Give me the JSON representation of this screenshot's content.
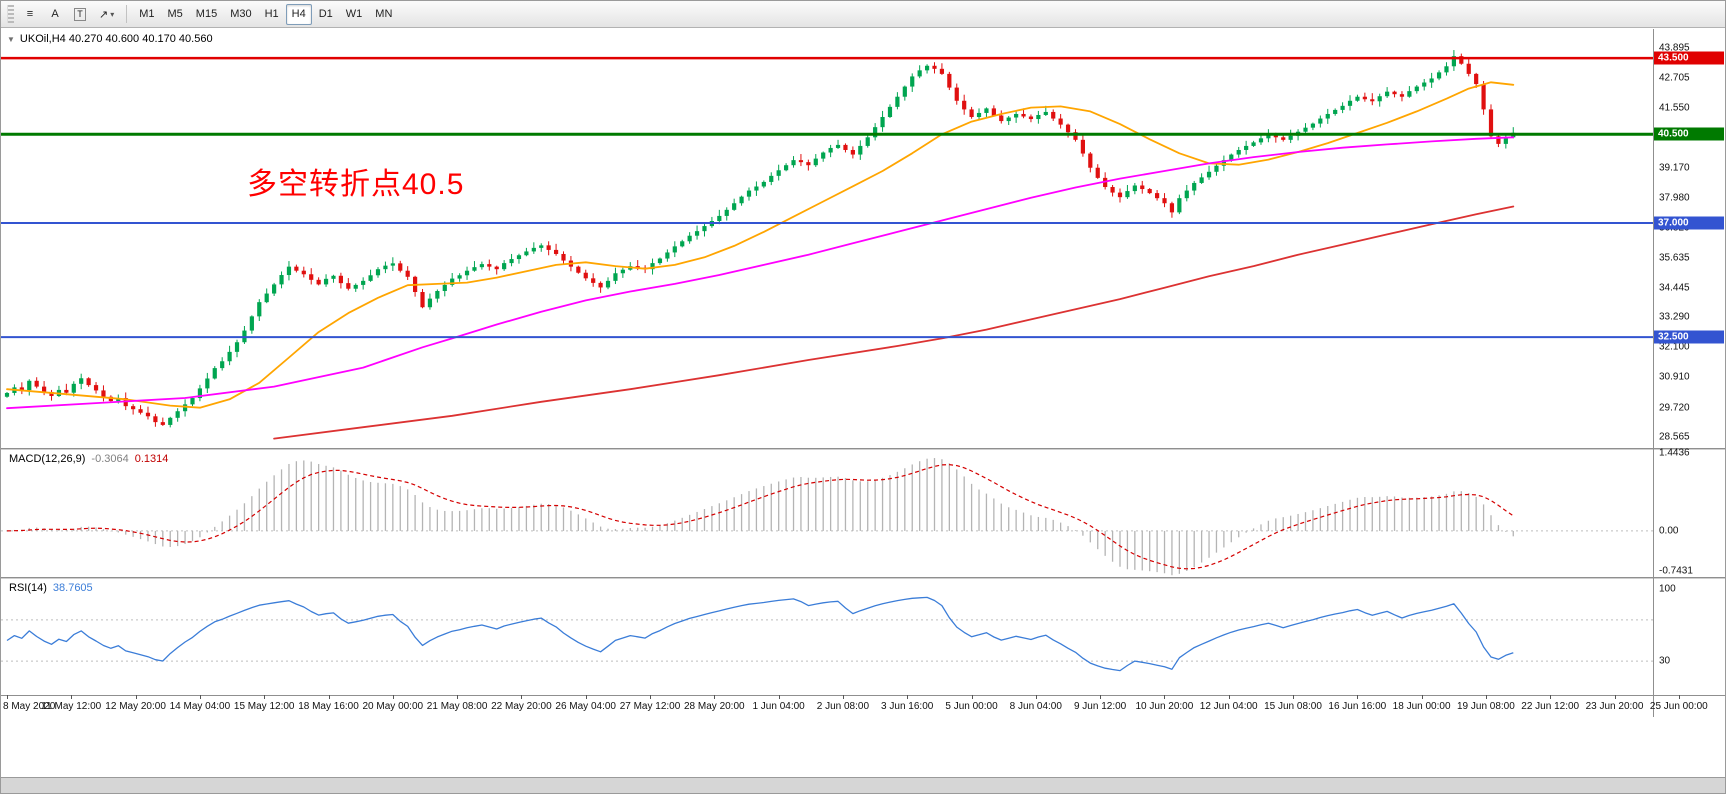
{
  "toolbar": {
    "tools": [
      {
        "name": "line-studies",
        "glyph": "≡"
      },
      {
        "name": "text-label",
        "glyph": "A"
      },
      {
        "name": "text-box",
        "glyph": "T"
      },
      {
        "name": "arrows",
        "glyph": "↗"
      }
    ],
    "dropdown_caret": "▾",
    "timeframes": [
      "M1",
      "M5",
      "M15",
      "M30",
      "H1",
      "H4",
      "D1",
      "W1",
      "MN"
    ],
    "active_timeframe": "H4"
  },
  "symbol_bar": {
    "marker": "▼",
    "text": "UKOil,H4 40.270 40.600 40.170 40.560"
  },
  "annotation": {
    "text": "多空转折点40.5",
    "color": "#ff0000"
  },
  "colors": {
    "bull": "#00A550",
    "bear": "#E01010",
    "ma_fast": "#FFA500",
    "ma_mid": "#FF00FF",
    "ma_slow": "#DC3232",
    "macd_hist": "#B4B4B4",
    "macd_signal": "#D40000",
    "rsi_line": "#3B7DD8",
    "level_dotted": "#BDBDBD"
  },
  "chart_data": {
    "type": "candlestick",
    "symbol": "UKOil",
    "timeframe": "H4",
    "main": {
      "ylim": [
        28.13,
        44.65
      ],
      "yticks": [
        43.895,
        42.705,
        41.55,
        40.39,
        39.17,
        37.98,
        36.82,
        35.635,
        34.445,
        33.29,
        32.1,
        30.91,
        29.72,
        28.565
      ],
      "hlines": [
        {
          "price": 43.5,
          "color": "#E00000",
          "width": 2.5,
          "label": "43.500"
        },
        {
          "price": 40.5,
          "color": "#007A00",
          "width": 3,
          "label": "40.500"
        },
        {
          "price": 37.0,
          "color": "#3354D1",
          "width": 2,
          "label": "37.000"
        },
        {
          "price": 32.5,
          "color": "#3354D1",
          "width": 2,
          "label": "32.500"
        }
      ],
      "closes": [
        30.3,
        30.52,
        30.41,
        30.78,
        30.55,
        30.34,
        30.18,
        30.42,
        30.31,
        30.66,
        30.88,
        30.61,
        30.4,
        30.15,
        29.98,
        30.1,
        29.78,
        29.66,
        29.52,
        29.38,
        29.15,
        29.04,
        29.32,
        29.58,
        29.85,
        30.1,
        30.48,
        30.87,
        31.28,
        31.55,
        31.92,
        32.3,
        32.76,
        33.32,
        33.88,
        34.22,
        34.58,
        34.95,
        35.28,
        35.12,
        34.98,
        34.76,
        34.58,
        34.8,
        34.92,
        34.63,
        34.41,
        34.56,
        34.72,
        34.94,
        35.18,
        35.32,
        35.41,
        35.12,
        34.88,
        34.28,
        33.68,
        34.02,
        34.32,
        34.56,
        34.81,
        34.94,
        35.12,
        35.26,
        35.38,
        35.28,
        35.18,
        35.42,
        35.58,
        35.73,
        35.88,
        36.02,
        36.12,
        35.94,
        35.78,
        35.52,
        35.28,
        35.04,
        34.82,
        34.64,
        34.46,
        34.72,
        35.02,
        35.16,
        35.3,
        35.24,
        35.18,
        35.42,
        35.6,
        35.84,
        36.08,
        36.28,
        36.5,
        36.68,
        36.88,
        37.08,
        37.28,
        37.52,
        37.78,
        38.04,
        38.28,
        38.44,
        38.62,
        38.86,
        39.08,
        39.28,
        39.48,
        39.4,
        39.28,
        39.54,
        39.78,
        39.96,
        40.08,
        39.88,
        39.7,
        40.04,
        40.38,
        40.78,
        41.18,
        41.58,
        41.98,
        42.38,
        42.78,
        43.02,
        43.2,
        43.08,
        42.88,
        42.34,
        41.82,
        41.48,
        41.18,
        41.34,
        41.52,
        41.24,
        41.02,
        41.16,
        41.3,
        41.2,
        41.1,
        41.26,
        41.38,
        41.12,
        40.88,
        40.58,
        40.28,
        39.74,
        39.18,
        38.78,
        38.42,
        38.2,
        38.02,
        38.26,
        38.48,
        38.34,
        38.18,
        37.98,
        37.78,
        37.42,
        37.98,
        38.28,
        38.58,
        38.8,
        39.02,
        39.26,
        39.48,
        39.7,
        39.88,
        40.04,
        40.18,
        40.34,
        40.48,
        40.38,
        40.28,
        40.44,
        40.6,
        40.76,
        40.92,
        41.12,
        41.3,
        41.46,
        41.62,
        41.82,
        41.98,
        41.88,
        41.8,
        42.0,
        42.18,
        42.08,
        41.98,
        42.2,
        42.38,
        42.54,
        42.7,
        42.94,
        43.18,
        43.58,
        43.28,
        42.88,
        42.48,
        41.48,
        40.42,
        40.12,
        40.38,
        40.56
      ],
      "mas": [
        {
          "name": "ma-fast",
          "color": "#FFA500",
          "points": [
            [
              0,
              30.45
            ],
            [
              8,
              30.25
            ],
            [
              16,
              30.05
            ],
            [
              22,
              29.8
            ],
            [
              26,
              29.72
            ],
            [
              30,
              30.05
            ],
            [
              34,
              30.7
            ],
            [
              38,
              31.7
            ],
            [
              42,
              32.7
            ],
            [
              46,
              33.45
            ],
            [
              50,
              34.05
            ],
            [
              54,
              34.55
            ],
            [
              58,
              34.6
            ],
            [
              62,
              34.65
            ],
            [
              66,
              34.85
            ],
            [
              70,
              35.1
            ],
            [
              74,
              35.35
            ],
            [
              78,
              35.45
            ],
            [
              82,
              35.3
            ],
            [
              86,
              35.2
            ],
            [
              90,
              35.35
            ],
            [
              94,
              35.65
            ],
            [
              98,
              36.1
            ],
            [
              102,
              36.65
            ],
            [
              106,
              37.25
            ],
            [
              110,
              37.85
            ],
            [
              114,
              38.45
            ],
            [
              118,
              39.05
            ],
            [
              122,
              39.75
            ],
            [
              126,
              40.5
            ],
            [
              130,
              41.0
            ],
            [
              134,
              41.3
            ],
            [
              138,
              41.55
            ],
            [
              142,
              41.6
            ],
            [
              146,
              41.4
            ],
            [
              150,
              40.9
            ],
            [
              154,
              40.3
            ],
            [
              158,
              39.75
            ],
            [
              162,
              39.35
            ],
            [
              166,
              39.3
            ],
            [
              170,
              39.5
            ],
            [
              174,
              39.8
            ],
            [
              178,
              40.15
            ],
            [
              182,
              40.55
            ],
            [
              186,
              40.95
            ],
            [
              190,
              41.4
            ],
            [
              194,
              41.9
            ],
            [
              197,
              42.3
            ],
            [
              200,
              42.55
            ],
            [
              203,
              42.45
            ]
          ]
        },
        {
          "name": "ma-mid",
          "color": "#FF00FF",
          "points": [
            [
              0,
              29.7
            ],
            [
              12,
              29.9
            ],
            [
              24,
              30.1
            ],
            [
              36,
              30.55
            ],
            [
              48,
              31.3
            ],
            [
              56,
              32.1
            ],
            [
              60,
              32.45
            ],
            [
              66,
              33.0
            ],
            [
              72,
              33.5
            ],
            [
              78,
              33.95
            ],
            [
              84,
              34.3
            ],
            [
              90,
              34.6
            ],
            [
              96,
              34.95
            ],
            [
              102,
              35.35
            ],
            [
              108,
              35.75
            ],
            [
              114,
              36.2
            ],
            [
              120,
              36.65
            ],
            [
              126,
              37.1
            ],
            [
              132,
              37.55
            ],
            [
              138,
              38.0
            ],
            [
              144,
              38.4
            ],
            [
              150,
              38.75
            ],
            [
              156,
              39.05
            ],
            [
              162,
              39.35
            ],
            [
              168,
              39.6
            ],
            [
              174,
              39.8
            ],
            [
              180,
              39.97
            ],
            [
              186,
              40.1
            ],
            [
              192,
              40.22
            ],
            [
              198,
              40.32
            ],
            [
              203,
              40.38
            ]
          ]
        },
        {
          "name": "ma-slow",
          "color": "#DC3232",
          "points": [
            [
              36,
              28.5
            ],
            [
              48,
              28.95
            ],
            [
              60,
              29.4
            ],
            [
              72,
              29.95
            ],
            [
              84,
              30.45
            ],
            [
              96,
              31.0
            ],
            [
              108,
              31.6
            ],
            [
              120,
              32.15
            ],
            [
              126,
              32.45
            ],
            [
              132,
              32.8
            ],
            [
              138,
              33.2
            ],
            [
              144,
              33.6
            ],
            [
              150,
              34.0
            ],
            [
              156,
              34.45
            ],
            [
              162,
              34.9
            ],
            [
              168,
              35.3
            ],
            [
              174,
              35.75
            ],
            [
              180,
              36.15
            ],
            [
              186,
              36.55
            ],
            [
              192,
              36.95
            ],
            [
              198,
              37.35
            ],
            [
              203,
              37.65
            ]
          ]
        }
      ]
    },
    "macd": {
      "title": "MACD(12,26,9)",
      "value": "-0.3064",
      "signal": "0.1314",
      "fast": 12,
      "slow": 26,
      "signal_period": 9,
      "ylim": [
        -0.854,
        1.499
      ],
      "yticks": [
        {
          "v": 1.4436,
          "t": "1.4436"
        },
        {
          "v": 0,
          "t": "0.00"
        },
        {
          "v": -0.7431,
          "t": "-0.7431"
        }
      ]
    },
    "rsi": {
      "title": "RSI(14)",
      "value": "38.7605",
      "period": 14,
      "ylim": [
        -2.9,
        109.7
      ],
      "yticks": [
        {
          "v": 100,
          "t": "100"
        },
        {
          "v": 30,
          "t": "30"
        }
      ],
      "levels": [
        30,
        70
      ]
    },
    "x_labels": [
      "8 May 2020",
      "11 May 12:00",
      "12 May 20:00",
      "14 May 04:00",
      "15 May 12:00",
      "18 May 16:00",
      "20 May 00:00",
      "21 May 08:00",
      "22 May 20:00",
      "26 May 04:00",
      "27 May 12:00",
      "28 May 20:00",
      "1 Jun 04:00",
      "2 Jun 08:00",
      "3 Jun 16:00",
      "5 Jun 00:00",
      "8 Jun 04:00",
      "9 Jun 12:00",
      "10 Jun 20:00",
      "12 Jun 04:00",
      "15 Jun 08:00",
      "16 Jun 16:00",
      "18 Jun 00:00",
      "19 Jun 08:00",
      "22 Jun 12:00",
      "23 Jun 20:00",
      "25 Jun 00:00"
    ]
  }
}
